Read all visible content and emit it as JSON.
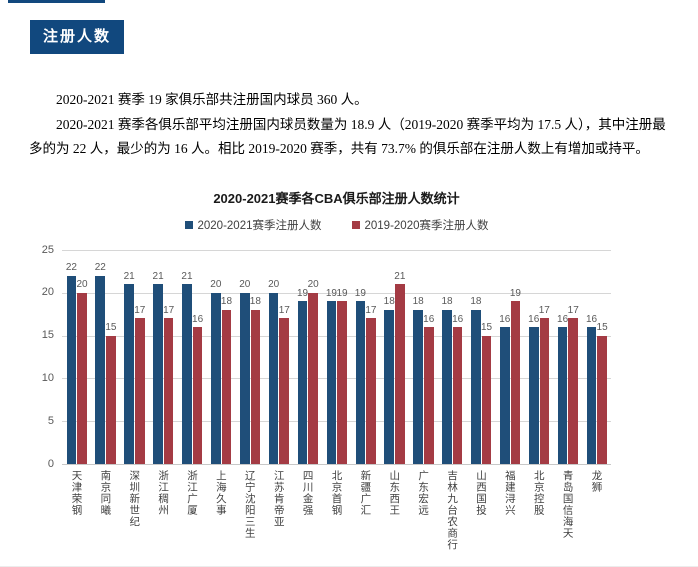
{
  "page": {
    "badge_label": "注册人数"
  },
  "paragraphs": {
    "p1": "2020-2021 赛季 19 家俱乐部共注册国内球员 360 人。",
    "p2": "2020-2021 赛季各俱乐部平均注册国内球员数量为 18.9 人（2019-2020 赛季平均为 17.5 人），其中注册最多的为 22 人，最少的为 16 人。相比 2019-2020 赛季，共有 73.7% 的俱乐部在注册人数上有增加或持平。"
  },
  "chart_data": {
    "type": "bar",
    "title": "2020-2021赛季各CBA俱乐部注册人数统计",
    "categories": [
      "天津荣钢",
      "南京同曦",
      "深圳新世纪",
      "浙江稠州",
      "浙江广厦",
      "上海久事",
      "辽宁沈阳三生",
      "江苏肯帝亚",
      "四川金强",
      "北京首钢",
      "新疆广汇",
      "山东西王",
      "广东宏远",
      "吉林九台农商行",
      "山西国投",
      "福建浔兴",
      "北京控股",
      "青岛国信海天",
      "龙狮"
    ],
    "series": [
      {
        "name": "2020-2021赛季注册人数",
        "color": "#1F4E79",
        "values": [
          22,
          22,
          21,
          21,
          21,
          20,
          20,
          20,
          19,
          19,
          19,
          18,
          18,
          18,
          18,
          16,
          16,
          16,
          16
        ]
      },
      {
        "name": "2019-2020赛季注册人数",
        "color": "#A43B44",
        "values": [
          20,
          15,
          17,
          17,
          16,
          18,
          18,
          17,
          20,
          19,
          17,
          21,
          16,
          16,
          15,
          19,
          17,
          17,
          15
        ]
      }
    ],
    "xlabel": "",
    "ylabel": "",
    "ylim": [
      0,
      25
    ],
    "yticks": [
      0,
      5,
      10,
      15,
      20,
      25
    ],
    "grid": "horizontal",
    "legend_position": "top"
  }
}
